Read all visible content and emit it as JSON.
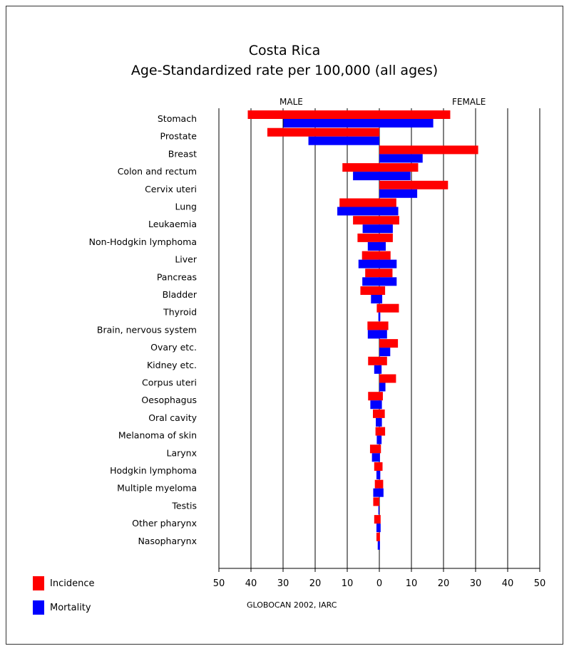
{
  "chart_data": {
    "type": "bar",
    "title": "Costa Rica",
    "subtitle": "Age-Standardized rate per 100,000 (all ages)",
    "left_label": "MALE",
    "right_label": "FEMALE",
    "credit": "GLOBOCAN 2002, IARC",
    "x_ticks": [
      "50",
      "40",
      "30",
      "20",
      "10",
      "0",
      "10",
      "20",
      "30",
      "40",
      "50"
    ],
    "xlim": [
      -50,
      50
    ],
    "grid": true,
    "legend": "bottom-left",
    "categories": [
      "Stomach",
      "Prostate",
      "Breast",
      "Colon and rectum",
      "Cervix uteri",
      "Lung",
      "Leukaemia",
      "Non-Hodgkin lymphoma",
      "Liver",
      "Pancreas",
      "Bladder",
      "Thyroid",
      "Brain, nervous system",
      "Ovary etc.",
      "Kidney etc.",
      "Corpus uteri",
      "Oesophagus",
      "Oral cavity",
      "Melanoma of skin",
      "Larynx",
      "Hodgkin lymphoma",
      "Multiple myeloma",
      "Testis",
      "Other pharynx",
      "Nasopharynx"
    ],
    "series": [
      {
        "name": "Incidence",
        "color": "#ff0000",
        "male": [
          41.0,
          34.9,
          0,
          11.5,
          0,
          12.4,
          8.2,
          6.8,
          5.4,
          4.4,
          5.9,
          0.8,
          3.7,
          0,
          3.5,
          0,
          3.5,
          2.0,
          1.2,
          2.9,
          1.6,
          1.4,
          1.9,
          1.6,
          0.9
        ],
        "female": [
          22.1,
          0,
          30.8,
          12.1,
          21.4,
          5.3,
          6.2,
          4.2,
          3.5,
          4.1,
          1.8,
          6.1,
          2.8,
          5.8,
          2.4,
          5.2,
          1.1,
          1.7,
          1.8,
          0.5,
          1.0,
          1.2,
          0,
          0.4,
          0.2
        ]
      },
      {
        "name": "Mortality",
        "color": "#0000ff",
        "male": [
          29.9,
          22.1,
          0,
          8.2,
          0,
          13.1,
          5.2,
          3.6,
          6.5,
          5.3,
          2.6,
          0.3,
          3.6,
          0,
          1.6,
          0,
          2.8,
          1.1,
          0.8,
          2.3,
          0.9,
          1.9,
          0.3,
          0.9,
          0.5
        ],
        "female": [
          16.8,
          0,
          13.5,
          9.7,
          11.8,
          5.9,
          4.2,
          2.0,
          5.4,
          5.4,
          0.9,
          0.3,
          2.4,
          3.4,
          0.7,
          1.9,
          0.8,
          0.8,
          0.7,
          0.2,
          0.3,
          1.3,
          0,
          0.4,
          0.2
        ]
      }
    ]
  }
}
